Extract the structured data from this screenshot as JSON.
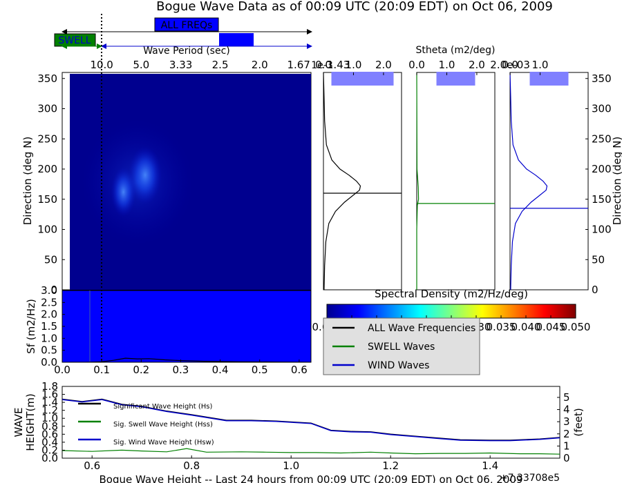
{
  "title": "Bogue Wave Data as of 00:09 UTC (20:09 EDT) on Oct 06, 2009",
  "period_bar": {
    "all_label": "ALL FREQs",
    "swell_label": "SWELL",
    "axis_label": "Wave Period (sec)",
    "period_ticks": [
      "10.0",
      "5.0",
      "3.33",
      "2.5",
      "2.0",
      "1.67",
      "1.43"
    ]
  },
  "colors": {
    "all": "#000000",
    "swell": "#008000",
    "wind": "#0000cc",
    "field": "#00008f",
    "sf_fill": "#0000ff",
    "marker_fill": "#8080ff"
  },
  "chart_data": [
    {
      "id": "directional_spectrum",
      "type": "heatmap",
      "ylabel": "Direction (deg N)",
      "ylim": [
        0,
        360
      ],
      "y_ticks": [
        "0",
        "50",
        "100",
        "150",
        "200",
        "250",
        "300",
        "350"
      ],
      "peaks": [
        {
          "freq": 0.21,
          "direction": 190,
          "density": 0.007
        },
        {
          "freq": 0.155,
          "direction": 162,
          "density": 0.006
        }
      ]
    },
    {
      "id": "frequency_spectrum",
      "type": "area",
      "ylabel": "Sf (m2/Hz)",
      "ylim": [
        0,
        3.0
      ],
      "xlim": [
        0,
        0.63
      ],
      "x_ticks": [
        "0.0",
        "0.1",
        "0.2",
        "0.3",
        "0.4",
        "0.5",
        "0.6"
      ],
      "y_ticks": [
        "0.0",
        "0.5",
        "1.0",
        "1.5",
        "2.0",
        "2.5",
        "3.0"
      ],
      "separation_freq": 0.1,
      "x": [
        0.02,
        0.06,
        0.1,
        0.13,
        0.16,
        0.19,
        0.22,
        0.26,
        0.3,
        0.36,
        0.45,
        0.55,
        0.63
      ],
      "y": [
        0.0,
        0.0,
        0.02,
        0.08,
        0.17,
        0.14,
        0.15,
        0.1,
        0.07,
        0.04,
        0.02,
        0.01,
        0.0
      ]
    },
    {
      "id": "stheta_all",
      "type": "line",
      "label": "ALL FREQs",
      "xlabel": "Stheta (m2/deg)",
      "x_ticks": [
        "0.0",
        "1.0",
        "2.0"
      ],
      "exponent": "1e-3",
      "xlim": [
        0,
        2.6
      ],
      "mean_direction": 160,
      "direction": [
        0,
        40,
        80,
        110,
        130,
        145,
        155,
        165,
        172,
        180,
        190,
        200,
        215,
        240,
        280,
        320,
        360
      ],
      "value": [
        0.02,
        0.04,
        0.08,
        0.18,
        0.4,
        0.7,
        0.95,
        1.2,
        1.23,
        1.1,
        0.85,
        0.55,
        0.28,
        0.1,
        0.04,
        0.02,
        0.0
      ]
    },
    {
      "id": "stheta_swell",
      "type": "line",
      "label": "SWELL",
      "x_ticks": [
        "0.0",
        "1.0",
        "2.0"
      ],
      "xlim": [
        0,
        2.6
      ],
      "mean_direction": 143,
      "direction": [
        0,
        100,
        140,
        150,
        170,
        200,
        360
      ],
      "value": [
        0.0,
        0.0,
        0.02,
        0.06,
        0.05,
        0.01,
        0.0
      ]
    },
    {
      "id": "stheta_wind",
      "type": "line",
      "label": "WIND",
      "x_ticks": [
        "0.0",
        "1.0",
        "2.0e-03"
      ],
      "xlim": [
        0,
        2.6
      ],
      "mean_direction": 135,
      "direction": [
        0,
        40,
        80,
        110,
        130,
        145,
        155,
        165,
        172,
        180,
        190,
        200,
        215,
        240,
        280,
        320,
        360
      ],
      "value": [
        0.02,
        0.04,
        0.08,
        0.18,
        0.4,
        0.7,
        0.95,
        1.2,
        1.23,
        1.1,
        0.85,
        0.55,
        0.28,
        0.1,
        0.04,
        0.02,
        0.0
      ]
    },
    {
      "id": "wave_height",
      "type": "line",
      "ylabel": "WAVE HEIGHT(m)",
      "y2label": "(feet)",
      "xlabel": "Bogue Wave Height -- Last 24 hours from 00:09 UTC (20:09 EDT) on Oct 06, 2009",
      "offset_text": "+7.33708e5",
      "xlim": [
        0.54,
        1.54
      ],
      "ylim": [
        0,
        1.8
      ],
      "x_ticks": [
        "0.6",
        "0.8",
        "1.0",
        "1.2",
        "1.4"
      ],
      "y_ticks": [
        "0.0",
        "0.2",
        "0.4",
        "0.6",
        "0.8",
        "1.0",
        "1.2",
        "1.4",
        "1.6",
        "1.8"
      ],
      "y2_ticks": [
        "0",
        "1",
        "2",
        "3",
        "4",
        "5"
      ],
      "series": [
        {
          "name": "Significant Wave Height (Hs)",
          "x": [
            0.54,
            0.58,
            0.62,
            0.66,
            0.7,
            0.75,
            0.8,
            0.87,
            0.92,
            0.97,
            1.04,
            1.08,
            1.12,
            1.16,
            1.2,
            1.25,
            1.3,
            1.34,
            1.4,
            1.44,
            1.5,
            1.54
          ],
          "y": [
            1.48,
            1.42,
            1.48,
            1.35,
            1.3,
            1.18,
            1.09,
            0.95,
            0.95,
            0.93,
            0.88,
            0.7,
            0.67,
            0.66,
            0.6,
            0.55,
            0.5,
            0.46,
            0.45,
            0.45,
            0.48,
            0.52
          ]
        },
        {
          "name": "Sig. Swell Wave Height (Hss)",
          "x": [
            0.54,
            0.6,
            0.66,
            0.7,
            0.75,
            0.79,
            0.83,
            0.9,
            0.95,
            1.0,
            1.05,
            1.1,
            1.16,
            1.2,
            1.25,
            1.3,
            1.35,
            1.4,
            1.46,
            1.5,
            1.54
          ],
          "y": [
            0.19,
            0.17,
            0.2,
            0.18,
            0.16,
            0.24,
            0.15,
            0.16,
            0.15,
            0.14,
            0.14,
            0.13,
            0.15,
            0.13,
            0.11,
            0.12,
            0.12,
            0.13,
            0.11,
            0.11,
            0.1
          ]
        },
        {
          "name": "Sig. Wind Wave Height (Hsw)",
          "x": [
            0.54,
            0.58,
            0.62,
            0.66,
            0.7,
            0.75,
            0.8,
            0.87,
            0.92,
            0.97,
            1.04,
            1.08,
            1.12,
            1.16,
            1.2,
            1.25,
            1.3,
            1.34,
            1.4,
            1.44,
            1.5,
            1.54
          ],
          "y": [
            1.47,
            1.41,
            1.47,
            1.34,
            1.29,
            1.17,
            1.08,
            0.94,
            0.94,
            0.92,
            0.87,
            0.69,
            0.66,
            0.65,
            0.59,
            0.54,
            0.49,
            0.45,
            0.44,
            0.44,
            0.47,
            0.51
          ]
        }
      ]
    }
  ],
  "panel_labels": {
    "all": "ALL FREQs",
    "swell": "SWELL",
    "wind": "WIND"
  },
  "colorbar": {
    "label": "Spectral Density (m2/Hz/deg)",
    "range": [
      0,
      0.05
    ],
    "ticks": [
      "0.000",
      "0.005",
      "0.010",
      "0.015",
      "0.020",
      "0.025",
      "0.030",
      "0.035",
      "0.040",
      "0.045",
      "0.050"
    ],
    "colors": [
      "#00008f",
      "#0000ff",
      "#0080ff",
      "#00ffff",
      "#80ff80",
      "#ffff00",
      "#ff8000",
      "#ff0000",
      "#800000"
    ]
  },
  "legend_spectra": [
    "ALL Wave Frequencies",
    "SWELL Waves",
    "WIND Waves"
  ]
}
